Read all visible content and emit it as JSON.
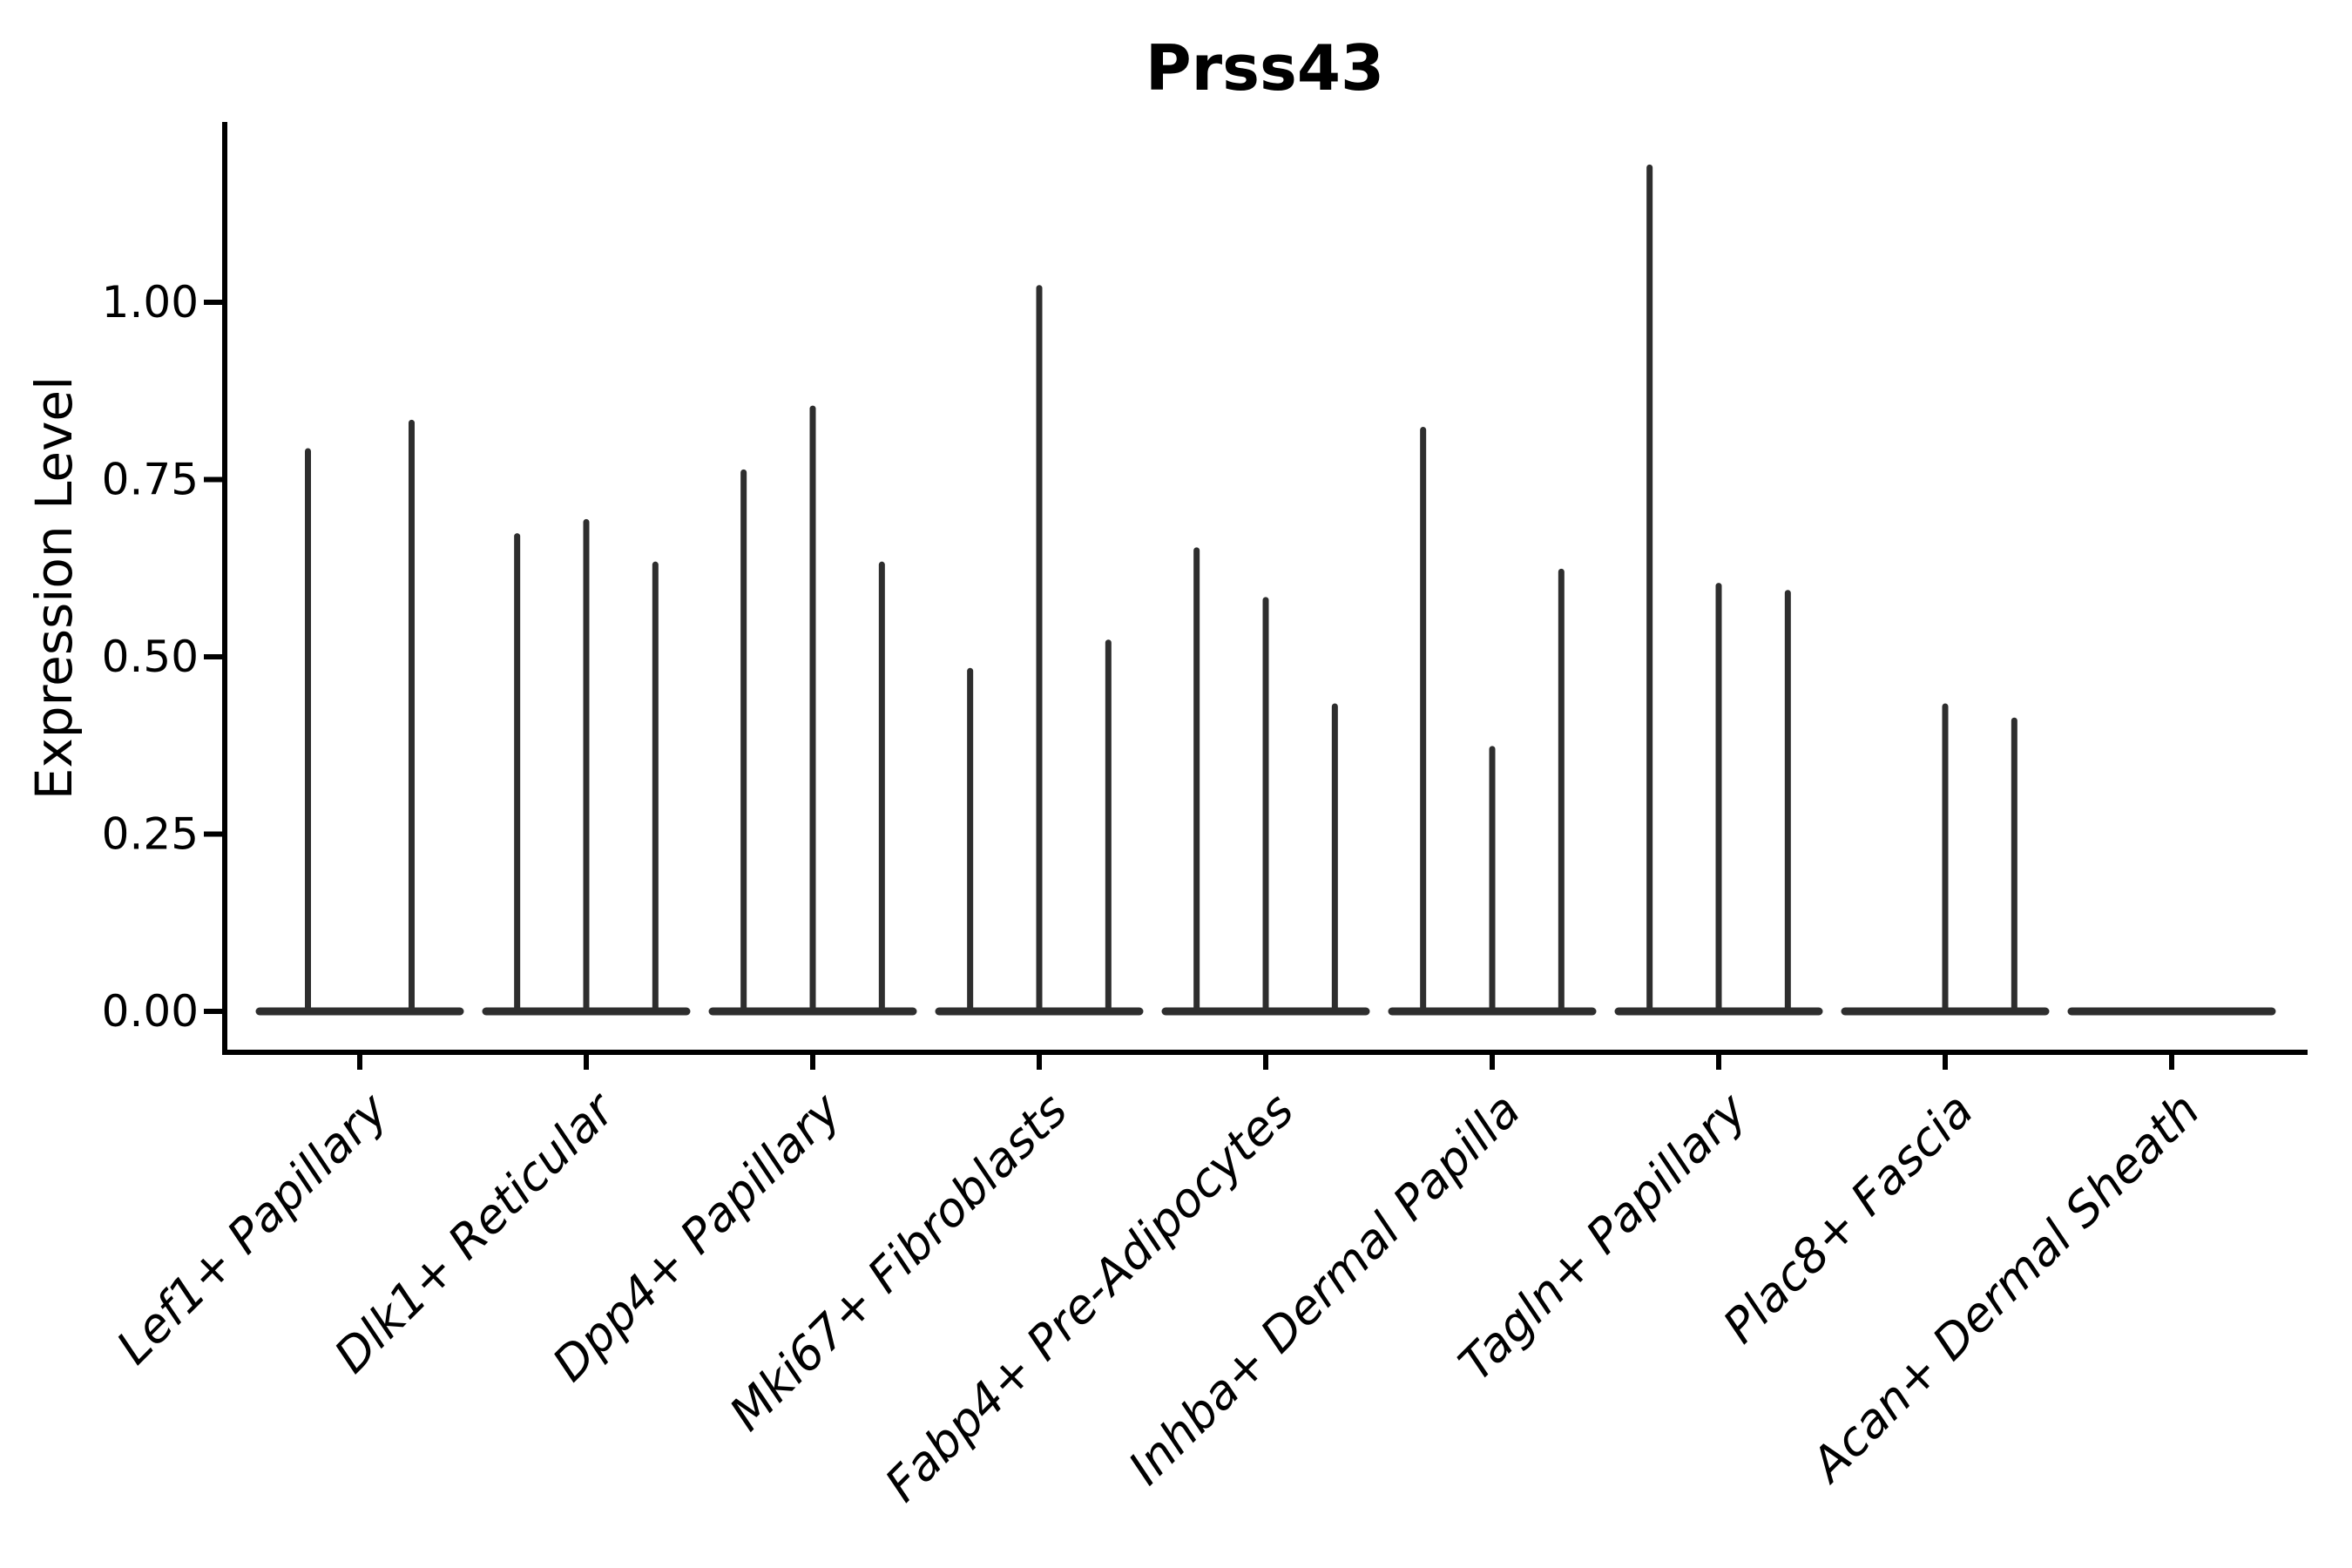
{
  "chart_data": {
    "type": "violin",
    "title": "Prss43",
    "ylabel": "Expression Level",
    "xlabel": "",
    "ylim": [
      -0.06,
      1.25
    ],
    "yticks": [
      0.0,
      0.25,
      0.5,
      0.75,
      1.0
    ],
    "ytick_labels": [
      "0.00",
      "0.25",
      "0.50",
      "0.75",
      "1.00"
    ],
    "grid": false,
    "legend": "none",
    "violin_color": "#2e2e2e",
    "axis_color": "#000000",
    "categories": [
      {
        "label": "Lef1+ Papillary",
        "spikes": [
          0.79,
          0.83
        ]
      },
      {
        "label": "Dlk1+ Reticular",
        "spikes": [
          0.67,
          0.69,
          0.63
        ]
      },
      {
        "label": "Dpp4+ Papillary",
        "spikes": [
          0.76,
          0.85,
          0.63
        ]
      },
      {
        "label": "Mki67+ Fibroblasts",
        "spikes": [
          0.48,
          1.02,
          0.52
        ]
      },
      {
        "label": "Fabp4+ Pre-Adipocytes",
        "spikes": [
          0.65,
          0.58,
          0.43
        ]
      },
      {
        "label": "Inhba+ Dermal Papilla",
        "spikes": [
          0.82,
          0.37,
          0.62
        ]
      },
      {
        "label": "Tagln+ Papillary",
        "spikes": [
          1.19,
          0.6,
          0.59
        ]
      },
      {
        "label": "Plac8+ Fascia",
        "spikes": [
          0.0,
          0.43,
          0.41
        ]
      },
      {
        "label": "Acan+ Dermal Sheath",
        "spikes": [
          0.0,
          0.0,
          0.0
        ]
      }
    ]
  }
}
